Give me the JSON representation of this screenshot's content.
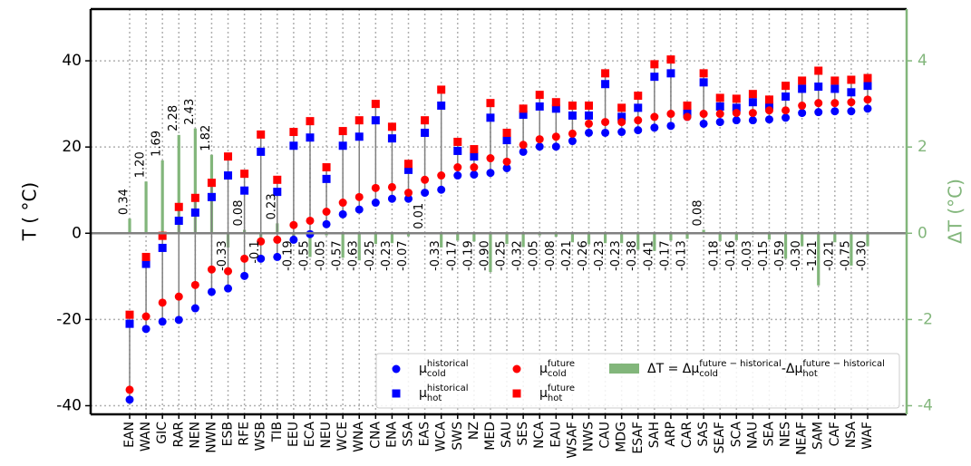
{
  "chart_data": {
    "type": "scatter",
    "ylabel": "T ( °C)",
    "y2label": "ΔT (°C)",
    "categories": [
      "EAN",
      "WAN",
      "GIC",
      "RAR",
      "NEN",
      "NWN",
      "ESB",
      "RFE",
      "WSB",
      "TIB",
      "EEU",
      "ECA",
      "NEU",
      "WCE",
      "WNA",
      "CNA",
      "ENA",
      "SSA",
      "EAS",
      "WCA",
      "SWS",
      "NZ",
      "MED",
      "SAU",
      "SES",
      "NCA",
      "EAU",
      "WSAF",
      "NWS",
      "CAU",
      "MDG",
      "ESAF",
      "SAH",
      "ARP",
      "CAR",
      "SAS",
      "SEAF",
      "SCA",
      "NAU",
      "SEA",
      "NES",
      "NEAF",
      "SAM",
      "CAF",
      "NSA",
      "WAF"
    ],
    "series": [
      {
        "name": "μ",
        "subscript": "cold",
        "superscript": "historical",
        "color": "#0000ff",
        "marker": "circle",
        "values": [
          -38.6,
          -22.2,
          -20.5,
          -20.1,
          -17.4,
          -13.6,
          -12.8,
          -9.9,
          -5.9,
          -5.5,
          -1.5,
          -0.2,
          2.1,
          4.4,
          5.5,
          7.1,
          8.0,
          8.0,
          9.4,
          10.1,
          13.4,
          13.6,
          14.0,
          15.1,
          18.9,
          20.1,
          20.1,
          21.4,
          23.3,
          23.3,
          23.5,
          23.9,
          24.5,
          24.9,
          27.0,
          25.4,
          25.8,
          26.2,
          26.2,
          26.4,
          26.8,
          27.9,
          28.1,
          28.3,
          28.3,
          28.9
        ]
      },
      {
        "name": "μ",
        "subscript": "hot",
        "superscript": "historical",
        "color": "#0000ff",
        "marker": "square",
        "values": [
          -21.0,
          -7.1,
          -3.4,
          2.9,
          4.8,
          8.4,
          13.4,
          9.9,
          18.9,
          9.6,
          20.3,
          22.2,
          12.6,
          20.3,
          22.4,
          26.2,
          22.0,
          14.7,
          23.3,
          29.6,
          19.1,
          17.8,
          26.8,
          21.6,
          27.5,
          29.4,
          28.9,
          27.3,
          27.3,
          34.6,
          27.0,
          29.1,
          36.3,
          37.1,
          27.9,
          35.0,
          29.4,
          29.1,
          30.4,
          29.6,
          31.7,
          33.5,
          34.0,
          33.5,
          32.7,
          34.2
        ]
      },
      {
        "name": "μ",
        "subscript": "cold",
        "superscript": "future",
        "color": "#ff0000",
        "marker": "circle",
        "values": [
          -36.3,
          -19.3,
          -16.1,
          -14.7,
          -12.0,
          -8.4,
          -8.8,
          -5.9,
          -1.9,
          -1.5,
          1.9,
          2.9,
          5.0,
          7.1,
          8.4,
          10.5,
          10.7,
          9.4,
          12.4,
          13.4,
          15.3,
          15.3,
          17.4,
          16.6,
          20.5,
          21.8,
          22.4,
          23.1,
          25.4,
          25.8,
          25.8,
          26.2,
          27.0,
          27.7,
          27.0,
          27.7,
          27.7,
          27.9,
          27.9,
          28.5,
          28.5,
          29.6,
          30.2,
          30.2,
          30.4,
          31.0
        ]
      },
      {
        "name": "μ",
        "subscript": "hot",
        "superscript": "future",
        "color": "#ff0000",
        "marker": "square",
        "values": [
          -18.9,
          -5.5,
          -0.6,
          6.1,
          8.2,
          11.7,
          17.8,
          13.8,
          22.9,
          12.4,
          23.5,
          26.0,
          15.3,
          23.7,
          26.2,
          30.0,
          24.7,
          16.1,
          26.2,
          33.3,
          21.2,
          19.5,
          30.2,
          23.3,
          28.9,
          32.1,
          30.4,
          29.6,
          29.6,
          37.1,
          29.1,
          31.9,
          39.2,
          40.3,
          29.6,
          37.1,
          31.4,
          31.2,
          32.3,
          31.0,
          34.2,
          35.4,
          37.7,
          35.4,
          35.6,
          36.0
        ]
      }
    ],
    "delta": {
      "label_parts": [
        "ΔT = Δμ",
        "cold",
        "future − historical",
        "-Δμ",
        "hot",
        "future − historical"
      ],
      "color": "#82b67b",
      "axis": "y2",
      "values": [
        0.34,
        1.2,
        1.69,
        2.28,
        2.43,
        1.82,
        -0.33,
        0.08,
        -0.1,
        0.23,
        -0.19,
        -0.55,
        -0.05,
        -0.57,
        -0.63,
        -0.25,
        -0.23,
        -0.07,
        0.01,
        -0.33,
        -0.17,
        -0.19,
        -0.9,
        -0.25,
        -0.32,
        -0.05,
        -0.08,
        -0.21,
        -0.26,
        -0.23,
        -0.23,
        -0.38,
        -0.41,
        -0.17,
        -0.13,
        0.08,
        -0.18,
        -0.16,
        -0.03,
        -0.15,
        -0.59,
        -0.3,
        -1.21,
        -0.21,
        -0.75,
        -0.3
      ],
      "value_labels": [
        "0.34",
        "1.20",
        "1.69",
        "2.28",
        "2.43",
        "1.82",
        "-0.33",
        "0.08",
        "-0.1",
        "0.23",
        "-0.19",
        "-0.55",
        "-0.05",
        "-0.57",
        "-0.63",
        "-0.25",
        "-0.23",
        "-0.07",
        "0.01",
        "-0.33",
        "-0.17",
        "-0.19",
        "-0.90",
        "-0.25",
        "-0.32",
        "-0.05",
        "-0.08",
        "-0.21",
        "-0.26",
        "-0.23",
        "-0.23",
        "-0.38",
        "-0.41",
        "-0.17",
        "-0.13",
        "0.08",
        "-0.18",
        "-0.16",
        "-0.03",
        "-0.15",
        "-0.59",
        "-0.30",
        "-1.21",
        "-0.21",
        "-0.75",
        "-0.30"
      ]
    },
    "ylim": [
      -42,
      52
    ],
    "yticks": [
      -40,
      -20,
      0,
      20,
      40
    ],
    "y2lim": [
      -4.2,
      5.2
    ],
    "y2ticks": [
      -4,
      -2,
      0,
      2,
      4
    ],
    "grid": true
  }
}
